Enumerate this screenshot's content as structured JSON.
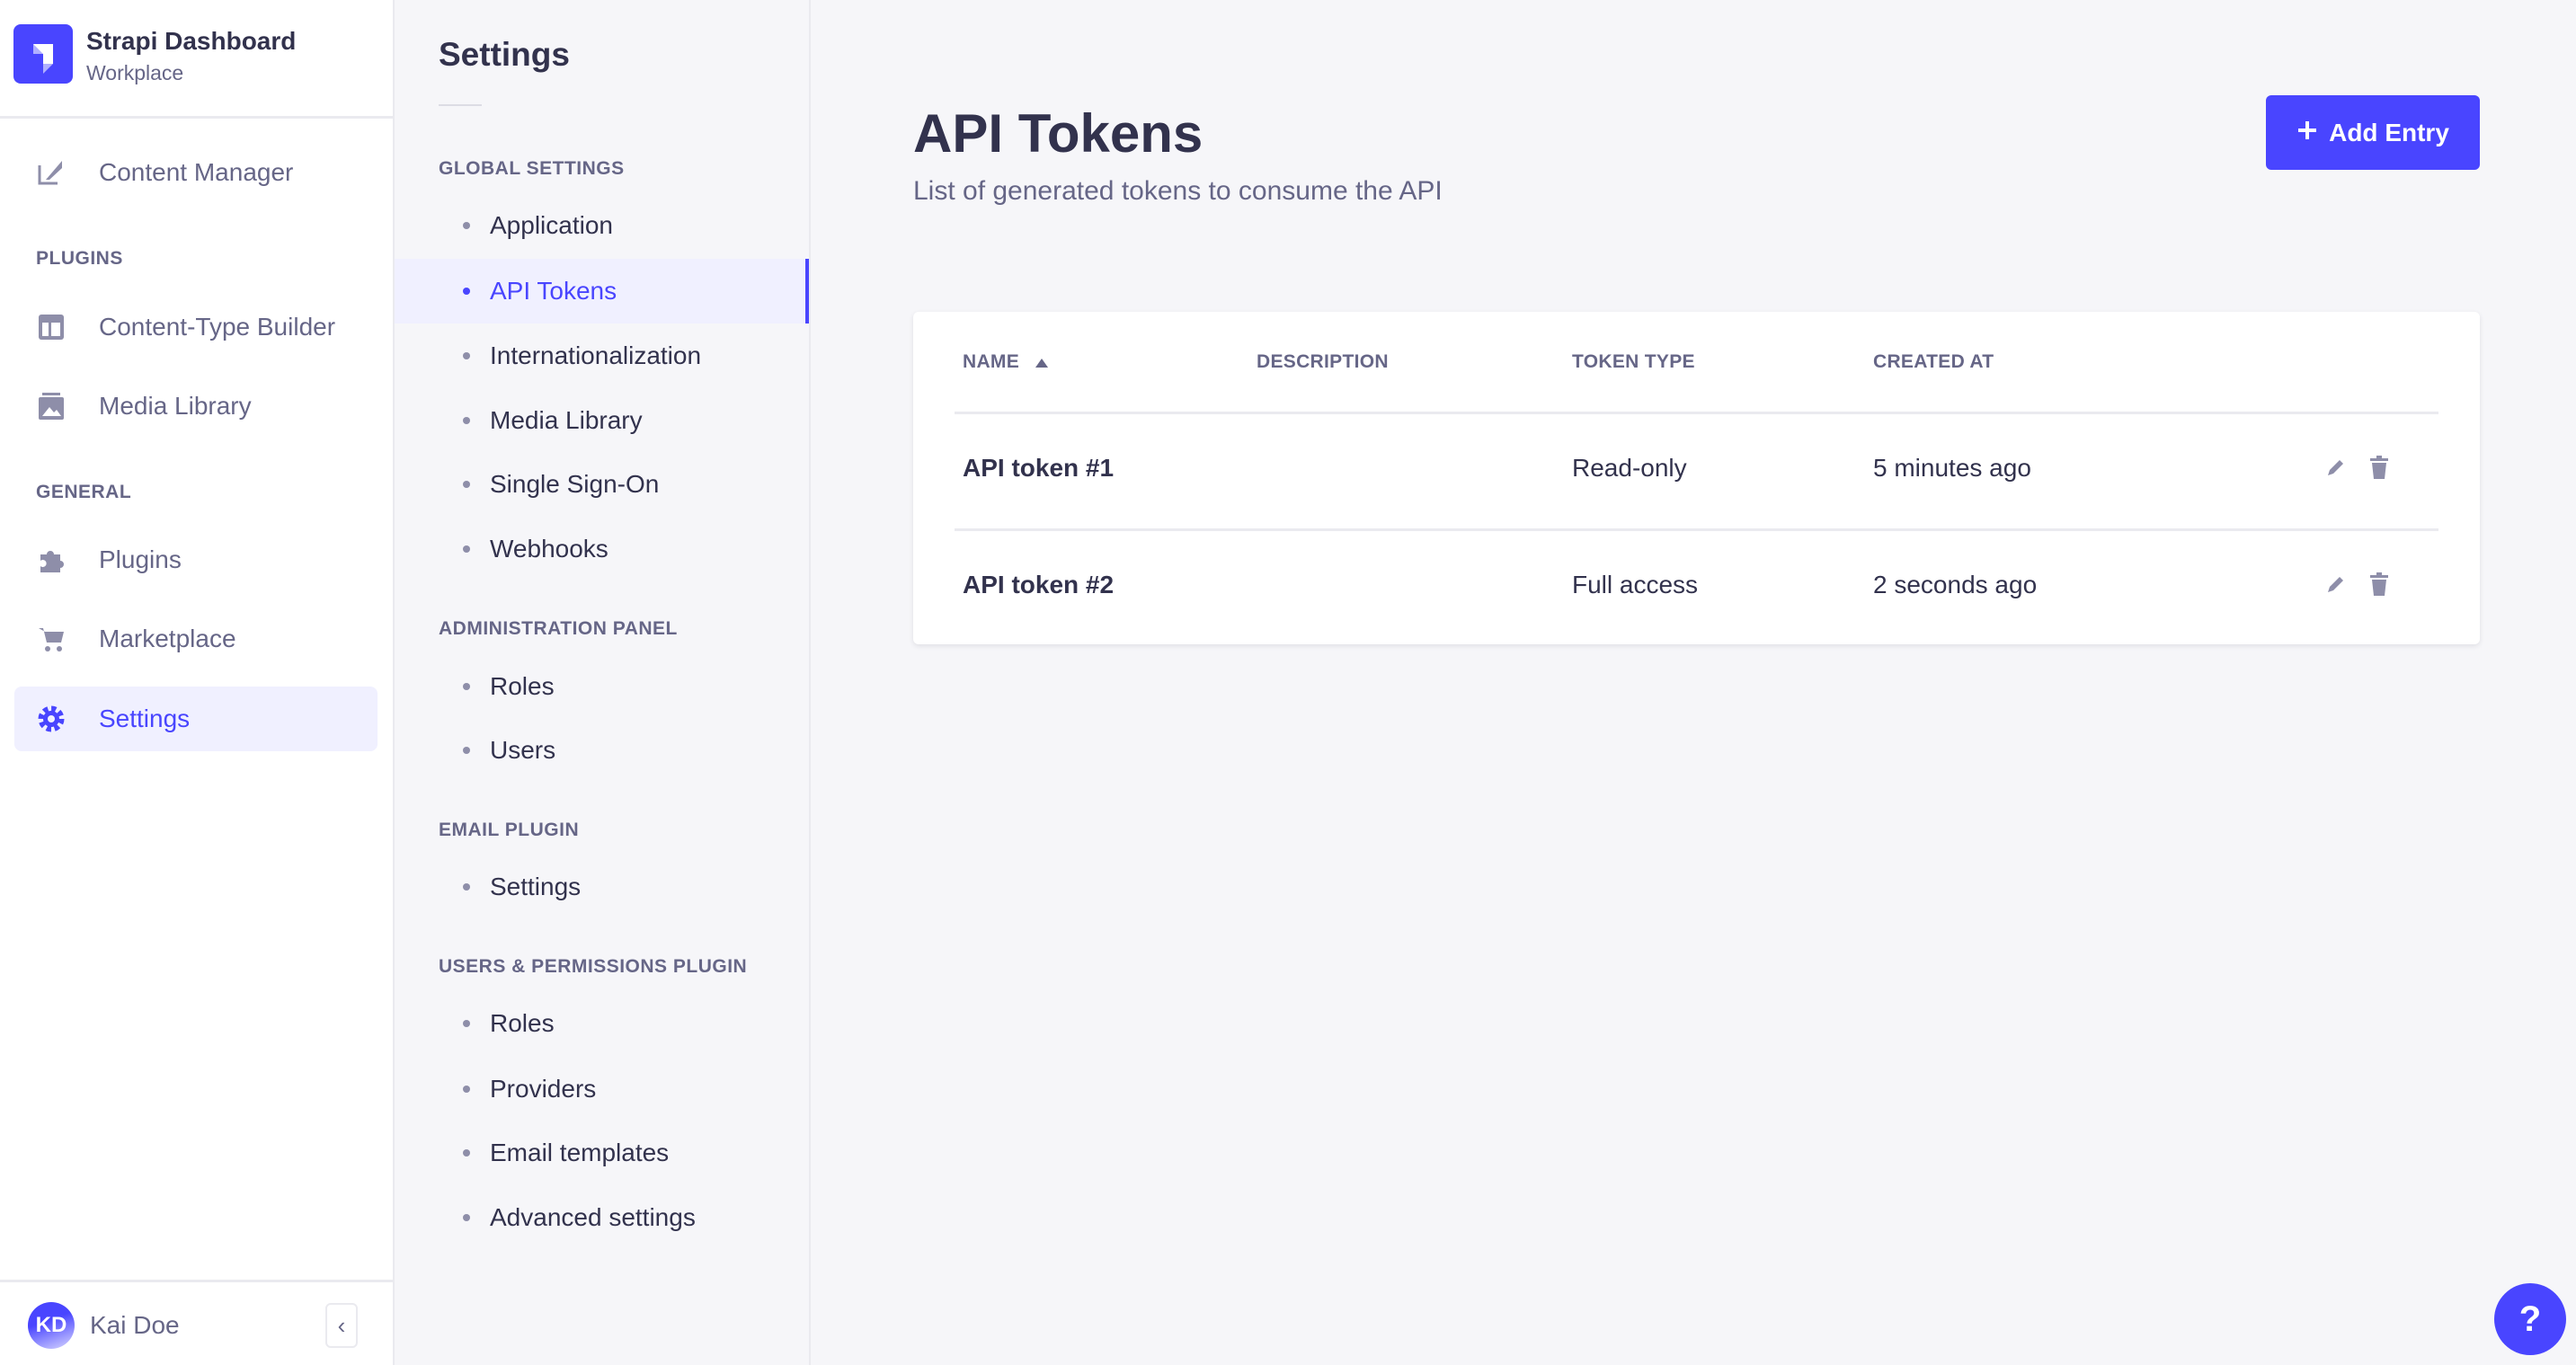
{
  "brand": {
    "title": "Strapi Dashboard",
    "subtitle": "Workplace"
  },
  "nav": {
    "content_manager": "Content Manager",
    "plugins_label": "PLUGINS",
    "content_type_builder": "Content-Type Builder",
    "media_library": "Media Library",
    "general_label": "GENERAL",
    "plugins": "Plugins",
    "marketplace": "Marketplace",
    "settings": "Settings"
  },
  "user": {
    "initials": "KD",
    "name": "Kai Doe"
  },
  "settings_panel": {
    "title": "Settings",
    "sections": [
      {
        "label": "GLOBAL SETTINGS",
        "items": [
          "Application",
          "API Tokens",
          "Internationalization",
          "Media Library",
          "Single Sign-On",
          "Webhooks"
        ]
      },
      {
        "label": "ADMINISTRATION PANEL",
        "items": [
          "Roles",
          "Users"
        ]
      },
      {
        "label": "EMAIL PLUGIN",
        "items": [
          "Settings"
        ]
      },
      {
        "label": "USERS & PERMISSIONS PLUGIN",
        "items": [
          "Roles",
          "Providers",
          "Email templates",
          "Advanced settings"
        ]
      }
    ],
    "active": "API Tokens"
  },
  "main": {
    "title": "API Tokens",
    "subtitle": "List of generated tokens to consume the API",
    "add_button": "Add Entry",
    "table": {
      "headers": [
        "NAME",
        "DESCRIPTION",
        "TOKEN TYPE",
        "CREATED AT"
      ],
      "sort": "NAME ascending",
      "rows": [
        {
          "name": "API token #1",
          "description": "",
          "type": "Read-only",
          "created": "5 minutes ago"
        },
        {
          "name": "API token #2",
          "description": "",
          "type": "Full access",
          "created": "2 seconds ago"
        }
      ]
    }
  },
  "help": "?",
  "colors": {
    "primary": "#4945ff",
    "text": "#32324d",
    "muted": "#666687",
    "background": "#f6f6f9"
  }
}
